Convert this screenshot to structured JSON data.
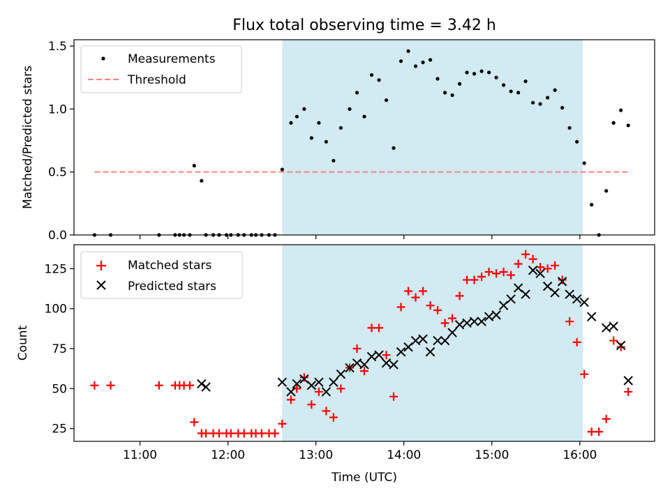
{
  "figure": {
    "title": "Flux total observing time = 3.42 h",
    "xlabel": "Time (UTC)"
  },
  "colors": {
    "shade": "#add8e6",
    "measurement": "#000000",
    "threshold": "#ff8080",
    "matched": "#ff0000",
    "predicted": "#000000"
  },
  "chart_data": [
    {
      "type": "scatter",
      "ylabel": "Matched/Predicted stars",
      "xlim": [
        "10:15",
        "16:51"
      ],
      "ylim": [
        0,
        1.55
      ],
      "x_ticks": [
        "11:00",
        "12:00",
        "13:00",
        "14:00",
        "15:00",
        "16:00"
      ],
      "y_ticks": [
        0.0,
        0.5,
        1.0,
        1.5
      ],
      "y_tick_labels": [
        "0.0",
        "0.5",
        "1.0",
        "1.5"
      ],
      "shaded_interval": [
        "12:37",
        "16:02"
      ],
      "legend": {
        "placement": "upper-left",
        "entries": [
          "Measurements",
          "Threshold"
        ]
      },
      "series": [
        {
          "name": "Measurements",
          "marker": "dot",
          "x": [
            "10:29",
            "10:40",
            "11:13",
            "11:24",
            "11:27",
            "11:30",
            "11:34",
            "11:37",
            "11:42",
            "11:45",
            "11:50",
            "11:54",
            "11:59",
            "12:02",
            "12:07",
            "12:11",
            "12:16",
            "12:19",
            "12:23",
            "12:28",
            "12:32",
            "12:37",
            "12:43",
            "12:47",
            "12:52",
            "12:57",
            "13:02",
            "13:07",
            "13:12",
            "13:17",
            "13:23",
            "13:28",
            "13:33",
            "13:38",
            "13:43",
            "13:48",
            "13:53",
            "13:58",
            "14:03",
            "14:08",
            "14:13",
            "14:18",
            "14:23",
            "14:28",
            "14:33",
            "14:38",
            "14:43",
            "14:48",
            "14:53",
            "14:58",
            "15:03",
            "15:08",
            "15:13",
            "15:18",
            "15:23",
            "15:28",
            "15:33",
            "15:38",
            "15:43",
            "15:48",
            "15:53",
            "15:58",
            "16:03",
            "16:08",
            "16:13",
            "16:18",
            "16:23",
            "16:28",
            "16:33"
          ],
          "y": [
            0,
            0,
            0,
            0,
            0,
            0,
            0,
            0.55,
            0.43,
            0,
            0,
            0,
            0,
            0,
            0,
            0,
            0,
            0,
            0,
            0,
            0,
            0.52,
            0.89,
            0.94,
            1.0,
            0.77,
            0.89,
            0.74,
            0.59,
            0.85,
            1.0,
            1.13,
            0.94,
            1.27,
            1.23,
            1.07,
            0.69,
            1.38,
            1.46,
            1.34,
            1.37,
            1.39,
            1.24,
            1.13,
            1.11,
            1.2,
            1.29,
            1.28,
            1.3,
            1.29,
            1.25,
            1.19,
            1.14,
            1.13,
            1.22,
            1.05,
            1.04,
            1.09,
            1.15,
            1.01,
            0.85,
            0.74,
            0.57,
            0.24,
            0,
            0.35,
            0.89,
            0.99,
            0.87
          ]
        },
        {
          "name": "Threshold",
          "marker": "dashed-line",
          "x": [
            "10:29",
            "16:33"
          ],
          "y": [
            0.5,
            0.5
          ]
        }
      ]
    },
    {
      "type": "scatter",
      "ylabel": "Count",
      "xlim": [
        "10:15",
        "16:51"
      ],
      "ylim": [
        17,
        140
      ],
      "x_ticks": [
        "11:00",
        "12:00",
        "13:00",
        "14:00",
        "15:00",
        "16:00"
      ],
      "y_ticks": [
        25,
        50,
        75,
        100,
        125
      ],
      "shaded_interval": [
        "12:37",
        "16:02"
      ],
      "legend": {
        "placement": "upper-left",
        "entries": [
          "Matched stars",
          "Predicted stars"
        ]
      },
      "series": [
        {
          "name": "Matched stars",
          "marker": "plus",
          "x": [
            "10:29",
            "10:40",
            "11:13",
            "11:24",
            "11:27",
            "11:30",
            "11:34",
            "11:37",
            "11:42",
            "11:45",
            "11:50",
            "11:54",
            "11:59",
            "12:02",
            "12:07",
            "12:11",
            "12:16",
            "12:19",
            "12:23",
            "12:28",
            "12:32",
            "12:37",
            "12:43",
            "12:47",
            "12:52",
            "12:57",
            "13:02",
            "13:07",
            "13:12",
            "13:17",
            "13:23",
            "13:28",
            "13:33",
            "13:38",
            "13:43",
            "13:48",
            "13:53",
            "13:58",
            "14:03",
            "14:08",
            "14:13",
            "14:18",
            "14:23",
            "14:28",
            "14:33",
            "14:38",
            "14:43",
            "14:48",
            "14:53",
            "14:58",
            "15:03",
            "15:08",
            "15:13",
            "15:18",
            "15:23",
            "15:28",
            "15:33",
            "15:38",
            "15:43",
            "15:48",
            "15:53",
            "15:58",
            "16:03",
            "16:08",
            "16:13",
            "16:18",
            "16:23",
            "16:28",
            "16:33"
          ],
          "y": [
            52,
            52,
            52,
            52,
            52,
            52,
            52,
            29,
            22,
            22,
            22,
            22,
            22,
            22,
            22,
            22,
            22,
            22,
            22,
            22,
            22,
            28,
            43,
            50,
            57,
            40,
            48,
            36,
            32,
            50,
            63,
            75,
            61,
            88,
            88,
            71,
            45,
            101,
            111,
            107,
            111,
            102,
            99,
            91,
            94,
            108,
            118,
            118,
            120,
            123,
            122,
            123,
            121,
            128,
            134,
            131,
            126,
            125,
            127,
            118,
            92,
            79,
            59,
            23,
            23,
            31,
            80,
            76,
            48
          ]
        },
        {
          "name": "Predicted stars",
          "marker": "x",
          "x": [
            "11:42",
            "11:45",
            "12:37",
            "12:43",
            "12:47",
            "12:52",
            "12:57",
            "13:02",
            "13:07",
            "13:12",
            "13:17",
            "13:23",
            "13:28",
            "13:33",
            "13:38",
            "13:43",
            "13:48",
            "13:53",
            "13:58",
            "14:03",
            "14:08",
            "14:13",
            "14:18",
            "14:23",
            "14:28",
            "14:33",
            "14:38",
            "14:43",
            "14:48",
            "14:53",
            "14:58",
            "15:03",
            "15:08",
            "15:13",
            "15:18",
            "15:23",
            "15:28",
            "15:33",
            "15:38",
            "15:43",
            "15:48",
            "15:53",
            "15:58",
            "16:03",
            "16:08",
            "16:18",
            "16:23",
            "16:28",
            "16:33"
          ],
          "y": [
            53,
            51,
            54,
            48,
            53,
            56,
            52,
            54,
            48,
            54,
            59,
            63,
            66,
            65,
            70,
            71,
            66,
            65,
            73,
            76,
            80,
            81,
            73,
            80,
            80,
            85,
            90,
            91,
            92,
            92,
            95,
            96,
            102,
            106,
            113,
            109,
            124,
            122,
            114,
            110,
            117,
            109,
            106,
            104,
            95,
            88,
            89,
            77,
            55
          ]
        }
      ]
    }
  ]
}
